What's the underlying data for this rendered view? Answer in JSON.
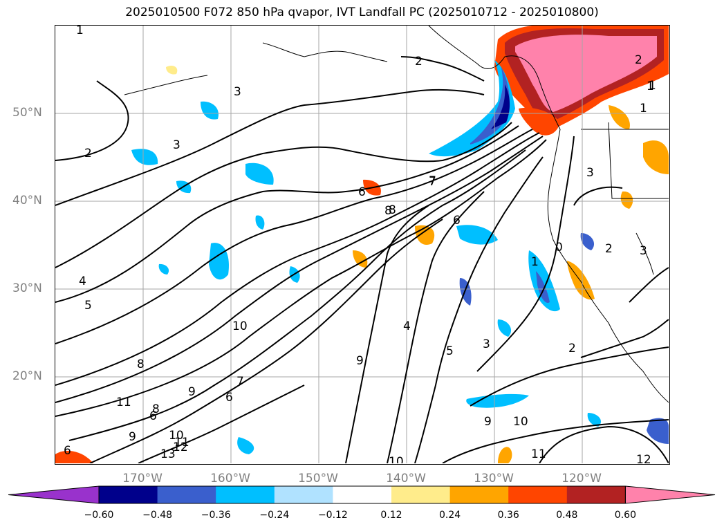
{
  "title": "2025010500 F072 850 hPa qvapor, IVT Landfall PC (2025010712 - 2025010800)",
  "lat_labels": [
    "50°N",
    "40°N",
    "30°N",
    "20°N"
  ],
  "lon_labels": [
    "170°W",
    "160°W",
    "150°W",
    "140°W",
    "130°W",
    "120°W"
  ],
  "colorbar": {
    "ticks": [
      "−0.60",
      "−0.48",
      "−0.36",
      "−0.24",
      "−0.12",
      "0.12",
      "0.24",
      "0.36",
      "0.48",
      "0.60"
    ],
    "colors": [
      "#9932cc",
      "#00008b",
      "#3a5fcd",
      "#00bfff",
      "#b0e2ff",
      "#ffffff",
      "#ffec8b",
      "#ffa500",
      "#ff4500",
      "#b22222",
      "#ff82ab"
    ]
  },
  "contour_labels": [
    "1",
    "2",
    "3",
    "3",
    "2",
    "2",
    "1",
    "1",
    "3",
    "4",
    "5",
    "6",
    "7",
    "8",
    "10",
    "8",
    "11",
    "9",
    "6",
    "7",
    "6",
    "9",
    "10",
    "11",
    "12",
    "13",
    "9",
    "8",
    "7",
    "6",
    "5",
    "4",
    "3",
    "2",
    "1",
    "0",
    "2",
    "3",
    "9",
    "10",
    "11",
    "12",
    "10",
    "1",
    "8",
    "6"
  ]
}
